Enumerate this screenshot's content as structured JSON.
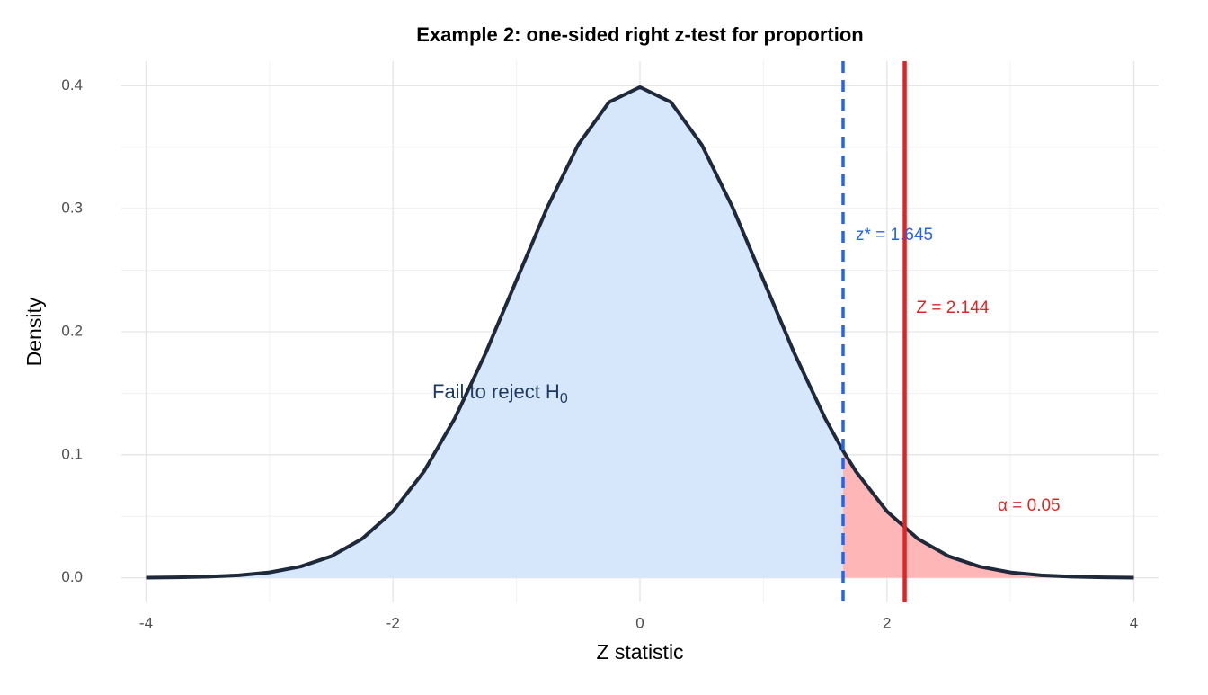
{
  "chart_data": {
    "type": "density",
    "title": "Example 2: one-sided right z-test for proportion",
    "x_label": "Z statistic",
    "y_label": "Density",
    "x": [
      -4,
      -3.75,
      -3.5,
      -3.25,
      -3,
      -2.75,
      -2.5,
      -2.25,
      -2,
      -1.75,
      -1.5,
      -1.25,
      -1,
      -0.75,
      -0.5,
      -0.25,
      0,
      0.25,
      0.5,
      0.75,
      1,
      1.25,
      1.5,
      1.645,
      1.75,
      2,
      2.25,
      2.5,
      2.75,
      3,
      3.25,
      3.5,
      3.75,
      4
    ],
    "y": [
      0.0001,
      0.0004,
      0.0009,
      0.002,
      0.0044,
      0.0091,
      0.0175,
      0.0317,
      0.054,
      0.0863,
      0.1295,
      0.1826,
      0.242,
      0.3011,
      0.3521,
      0.3867,
      0.3989,
      0.3867,
      0.3521,
      0.3011,
      0.242,
      0.1826,
      0.1295,
      0.1031,
      0.0863,
      0.054,
      0.0317,
      0.0175,
      0.0091,
      0.0044,
      0.002,
      0.0009,
      0.0004,
      0.0001
    ],
    "line_color": "#1e293b",
    "fail_color": "#d6e6fb",
    "reject_color": "#ffb6b6",
    "critical_value": 1.645,
    "critical_color": "#2563eb",
    "critical_label": "z* = 1.645",
    "test_statistic": 2.144,
    "statistic_color": "#dc2626",
    "statistic_label": "Z = 2.144",
    "fail_label": "Fail to reject H",
    "fail_label_subscript": "0",
    "fail_label_color": "#1e3a5f",
    "alpha_label": "α = 0.05",
    "xlim": [
      -4.2,
      4.2
    ],
    "ylim": [
      -0.02,
      0.42
    ],
    "xticks": [
      -4,
      -2,
      0,
      2,
      4
    ],
    "yticks": [
      {
        "value": 0,
        "label": "0.0"
      },
      0.1,
      0.2,
      0.3,
      0.4
    ],
    "x_minor_ticks": [
      -3,
      -1,
      1,
      3
    ],
    "y_minor_ticks": [
      0.05,
      0.15,
      0.25,
      0.35
    ],
    "grid": true
  }
}
